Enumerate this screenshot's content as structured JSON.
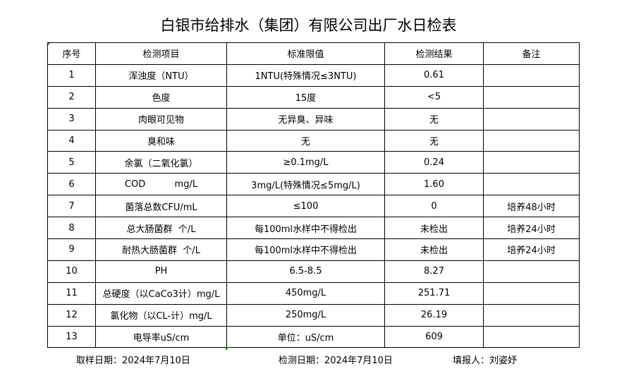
{
  "title": "白银市给排水（集团）有限公司出厂水日检表",
  "headers": [
    "序号",
    "检测项目",
    "标准限值",
    "检测结果",
    "备注"
  ],
  "rows": [
    [
      "1",
      "浑浊度（NTU）",
      "1NTU(特殊情况≤3NTU)",
      "0.61",
      ""
    ],
    [
      "2",
      "色度",
      "15度",
      "<5",
      ""
    ],
    [
      "3",
      "肉眼可见物",
      "无异臭、异味",
      "无",
      ""
    ],
    [
      "4",
      "臭和味",
      "无",
      "无",
      ""
    ],
    [
      "5",
      "余氯（二氧化氯）",
      "≥0.1mg/L",
      "0.24",
      ""
    ],
    [
      "6",
      "COD          mg/L",
      "3mg/L(特殊情况≤5mg/L)",
      "1.60",
      ""
    ],
    [
      "7",
      "菌落总数CFU/mL",
      "≤100",
      "0",
      "培养48小时"
    ],
    [
      "8",
      "总大肠菌群  个/L",
      "每100ml水样中不得检出",
      "未检出",
      "培养24小时"
    ],
    [
      "9",
      "耐热大肠菌群  个/L",
      "每100ml水样中不得检出",
      "未检出",
      "培养24小时"
    ],
    [
      "10",
      "PH",
      "6.5-8.5",
      "8.27",
      ""
    ],
    [
      "11",
      "总硬度（以CaCo3计）mg/L",
      "450mg/L",
      "251.71",
      ""
    ],
    [
      "12",
      "氯化物（以CL-计）mg/L",
      "250mg/L",
      "26.19",
      ""
    ],
    [
      "13",
      "电导率uS/cm",
      "单位：uS/cm",
      "609",
      ""
    ]
  ],
  "footer": {
    "sample_date": "取样日期：2024年7月10日",
    "test_date": "检测日期：2024年7月10日",
    "reporter": "填报人：刘姿妤"
  }
}
